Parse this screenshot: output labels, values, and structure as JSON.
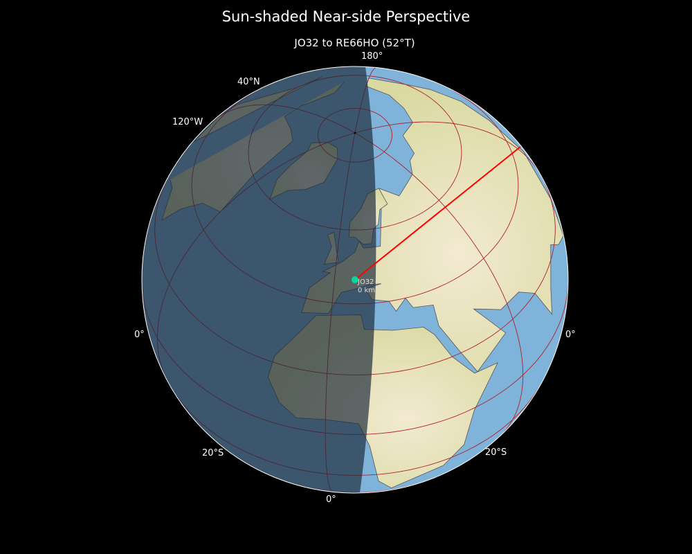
{
  "title": "Sun-shaded Near-side Perspective",
  "subtitle": "JO32 to RE66HO (52°T)",
  "graticule_labels": {
    "top_lon": "180°",
    "lat_40n": "40°N",
    "lon_120w": "120°W",
    "left_eq": "0°",
    "right_eq": "0°",
    "lat_20s_left": "20°S",
    "lat_20s_right": "20°S",
    "bottom_lon": "0°"
  },
  "station": {
    "label": "JO32",
    "distance": "0 km",
    "color": "#00d9a0"
  },
  "path": {
    "from": "JO32",
    "to": "RE66HO",
    "bearing_deg": 52,
    "color": "#ff0000"
  },
  "colors": {
    "background": "#000000",
    "ocean": "#7fb3d9",
    "land": "#e8e3b8",
    "graticule": "#b0202a",
    "night_overlay": "#1a2a3a"
  }
}
